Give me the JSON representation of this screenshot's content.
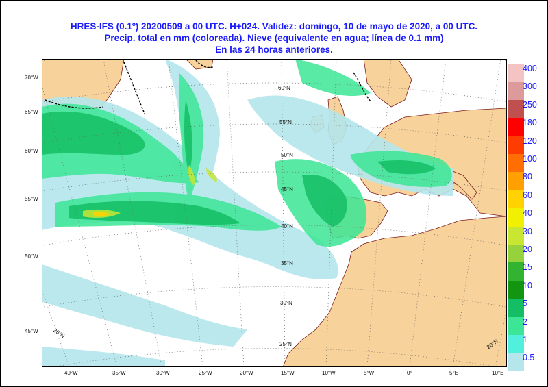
{
  "header": {
    "line1": "HRES-IFS (0.1º) 20200509 a 00 UTC.  H+024. Validez: domingo, 10 de mayo de 2020,  a  00 UTC.",
    "line2": "Precip. total en mm (coloreada). Nieve (equivalente en agua; línea de 0.1 mm)",
    "line3": "En las 24 horas anteriores."
  },
  "map": {
    "ocean_color": "#ffffff",
    "land_color": "#f7d29a",
    "grid_color": "#666666",
    "left_lat_labels": [
      "70°W",
      "65°W",
      "60°W",
      "55°W",
      "50°W",
      "45°W"
    ],
    "bottom_lon_labels": [
      "40°W",
      "35°W",
      "30°W",
      "25°W",
      "20°W",
      "15°W",
      "10°W",
      "5°W",
      "0°",
      "5°E",
      "10°E"
    ],
    "inner_lat_labels": [
      "60°N",
      "55°N",
      "50°N",
      "45°N",
      "40°N",
      "35°N",
      "30°N",
      "25°N"
    ],
    "corner_labels": [
      "20°N",
      "20°N"
    ]
  },
  "legend": {
    "levels": [
      "400",
      "300",
      "250",
      "180",
      "120",
      "100",
      "80",
      "60",
      "40",
      "30",
      "20",
      "15",
      "10",
      "5",
      "2",
      "1",
      "0.5"
    ],
    "colors": [
      "#f4c4c4",
      "#dc9a9a",
      "#c05050",
      "#ff0000",
      "#ff3c00",
      "#ff6e00",
      "#ffa000",
      "#ffd200",
      "#f0f000",
      "#c8e632",
      "#96d23c",
      "#32b432",
      "#129612",
      "#14be64",
      "#3ce696",
      "#50f0dc",
      "#b4e6ec"
    ]
  }
}
